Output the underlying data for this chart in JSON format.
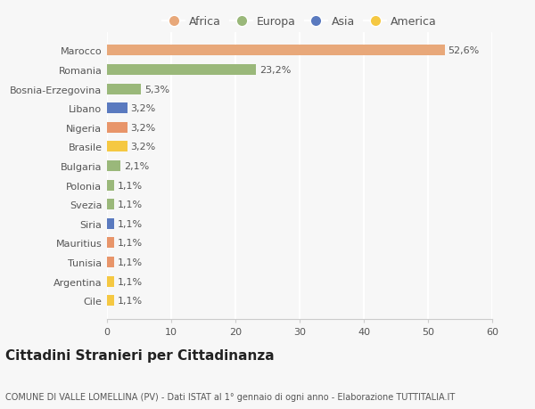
{
  "categories": [
    "Cile",
    "Argentina",
    "Tunisia",
    "Mauritius",
    "Siria",
    "Svezia",
    "Polonia",
    "Bulgaria",
    "Brasile",
    "Nigeria",
    "Libano",
    "Bosnia-Erzegovina",
    "Romania",
    "Marocco"
  ],
  "values": [
    1.1,
    1.1,
    1.1,
    1.1,
    1.1,
    1.1,
    1.1,
    2.1,
    3.2,
    3.2,
    3.2,
    5.3,
    23.2,
    52.6
  ],
  "bar_colors": [
    "#f5c842",
    "#f5c842",
    "#e8956a",
    "#e8956a",
    "#5a7abf",
    "#9ab87a",
    "#9ab87a",
    "#9ab87a",
    "#f5c842",
    "#e8956a",
    "#5a7abf",
    "#9ab87a",
    "#9ab87a",
    "#e8a87a"
  ],
  "labels": [
    "1,1%",
    "1,1%",
    "1,1%",
    "1,1%",
    "1,1%",
    "1,1%",
    "1,1%",
    "2,1%",
    "3,2%",
    "3,2%",
    "3,2%",
    "5,3%",
    "23,2%",
    "52,6%"
  ],
  "legend_labels": [
    "Africa",
    "Europa",
    "Asia",
    "America"
  ],
  "legend_colors": [
    "#e8a87a",
    "#9ab87a",
    "#5a7abf",
    "#f5c842"
  ],
  "title": "Cittadini Stranieri per Cittadinanza",
  "subtitle": "COMUNE DI VALLE LOMELLINA (PV) - Dati ISTAT al 1° gennaio di ogni anno - Elaborazione TUTTITALIA.IT",
  "xlim": [
    0,
    60
  ],
  "xticks": [
    0,
    10,
    20,
    30,
    40,
    50,
    60
  ],
  "bg_color": "#f7f7f7",
  "bar_height": 0.55,
  "title_fontsize": 11,
  "subtitle_fontsize": 7,
  "label_fontsize": 8,
  "tick_fontsize": 8,
  "legend_fontsize": 9
}
